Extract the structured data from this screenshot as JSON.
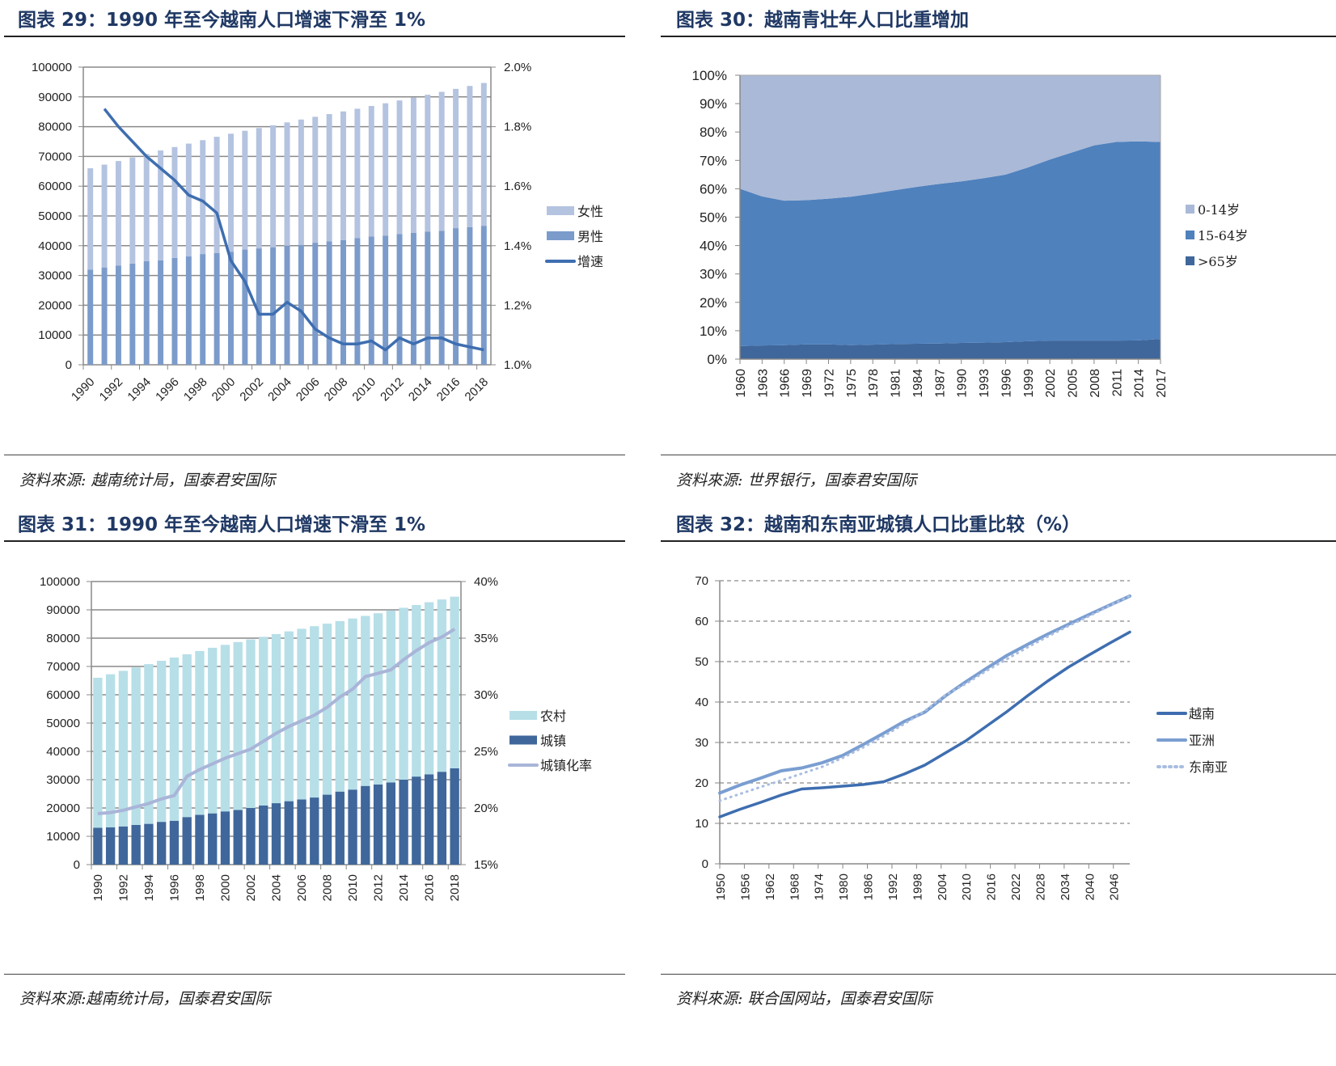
{
  "panels": [
    {
      "title": "图表 29：1990 年至今越南人口增速下滑至 1%",
      "source": "资料來源: 越南统计局，国泰君安国际"
    },
    {
      "title": "图表 30：越南青壮年人口比重增加",
      "source": "资料來源: 世界银行，国泰君安国际"
    },
    {
      "title": "图表 31：1990 年至今越南人口增速下滑至 1%",
      "source": "资料來源:越南统计局，国泰君安国际"
    },
    {
      "title": "图表 32：越南和东南亚城镇人口比重比较（%）",
      "source": "资料來源: 联合国网站，国泰君安国际"
    }
  ],
  "chart_data": [
    {
      "type": "bar",
      "stacked": true,
      "x": [
        1990,
        1991,
        1992,
        1993,
        1994,
        1995,
        1996,
        1997,
        1998,
        1999,
        2000,
        2001,
        2002,
        2003,
        2004,
        2005,
        2006,
        2007,
        2008,
        2009,
        2010,
        2011,
        2012,
        2013,
        2014,
        2015,
        2016,
        2017,
        2018
      ],
      "x_tick_labels": [
        "1990",
        "1992",
        "1994",
        "1996",
        "1998",
        "2000",
        "2002",
        "2004",
        "2006",
        "2008",
        "2010",
        "2012",
        "2014",
        "2016",
        "2018"
      ],
      "series": [
        {
          "name": "男性",
          "axis": "left",
          "color": "#7b9bcb",
          "values": [
            32000,
            32700,
            33300,
            34000,
            34800,
            35100,
            35900,
            36400,
            37200,
            37500,
            38000,
            38700,
            39100,
            39500,
            40000,
            40300,
            41000,
            41500,
            41900,
            42600,
            43100,
            43400,
            43900,
            44300,
            44700,
            45000,
            45900,
            46200,
            46700
          ]
        },
        {
          "name": "女性",
          "axis": "left",
          "color": "#b4c3e0",
          "values": [
            34016,
            34542,
            35150,
            35645,
            36025,
            36896,
            37257,
            37907,
            38256,
            39097,
            39631,
            39921,
            40438,
            40968,
            41438,
            42094,
            42314,
            42721,
            43219,
            43425,
            43847,
            44460,
            44909,
            45460,
            46029,
            46713,
            46795,
            47471,
            47966
          ]
        },
        {
          "name": "增速",
          "type": "line",
          "axis": "right",
          "color": "#3e6eb0",
          "x": [
            1991,
            1992,
            1993,
            1994,
            1995,
            1996,
            1997,
            1998,
            1999,
            2000,
            2001,
            2002,
            2003,
            2004,
            2005,
            2006,
            2007,
            2008,
            2009,
            2010,
            2011,
            2012,
            2013,
            2014,
            2015,
            2016,
            2017,
            2018
          ],
          "values": [
            1.86,
            1.8,
            1.75,
            1.7,
            1.66,
            1.62,
            1.57,
            1.55,
            1.51,
            1.35,
            1.28,
            1.17,
            1.17,
            1.21,
            1.18,
            1.12,
            1.09,
            1.07,
            1.07,
            1.08,
            1.05,
            1.09,
            1.07,
            1.09,
            1.09,
            1.07,
            1.06,
            1.05
          ]
        }
      ],
      "left_axis": {
        "min": 0,
        "max": 100000,
        "step": 10000,
        "ticks": [
          "0",
          "10000",
          "20000",
          "30000",
          "40000",
          "50000",
          "60000",
          "70000",
          "80000",
          "90000",
          "100000"
        ]
      },
      "right_axis": {
        "min": 1.0,
        "max": 2.0,
        "ticks": [
          "1.0%",
          "1.2%",
          "1.4%",
          "1.6%",
          "1.8%",
          "2.0%"
        ]
      },
      "legend": [
        "女性",
        "男性",
        "增速"
      ],
      "legend_position": "right",
      "grid": true
    },
    {
      "type": "area",
      "stacked": true,
      "x": [
        1960,
        1963,
        1966,
        1969,
        1972,
        1975,
        1978,
        1981,
        1984,
        1987,
        1990,
        1993,
        1996,
        1999,
        2002,
        2005,
        2008,
        2011,
        2014,
        2017
      ],
      "series": [
        {
          "name": ">65岁",
          "color": "#3f679b",
          "values": [
            4.6,
            4.8,
            4.9,
            5.2,
            5.2,
            4.9,
            5.1,
            5.3,
            5.4,
            5.5,
            5.7,
            5.8,
            6.0,
            6.3,
            6.5,
            6.5,
            6.5,
            6.5,
            6.6,
            7.1
          ]
        },
        {
          "name": "15-64岁",
          "color": "#4f81bd",
          "values": [
            55.4,
            52.5,
            50.9,
            50.8,
            51.3,
            52.3,
            53.2,
            54.2,
            55.3,
            56.2,
            56.9,
            57.9,
            59.0,
            61.2,
            63.8,
            66.3,
            68.8,
            70.0,
            70.1,
            69.4
          ]
        },
        {
          "name": "0-14岁",
          "color": "#aab9d7",
          "values": [
            40.0,
            42.7,
            44.2,
            44.0,
            43.5,
            42.8,
            41.7,
            40.5,
            39.3,
            38.3,
            37.4,
            36.3,
            35.0,
            32.5,
            29.7,
            27.2,
            24.7,
            23.5,
            23.3,
            23.5
          ]
        }
      ],
      "y_axis": {
        "min": 0,
        "max": 100,
        "ticks": [
          "0%",
          "10%",
          "20%",
          "30%",
          "40%",
          "50%",
          "60%",
          "70%",
          "80%",
          "90%",
          "100%"
        ]
      },
      "legend": [
        "0-14岁",
        "15-64岁",
        ">65岁"
      ],
      "legend_position": "right"
    },
    {
      "type": "bar",
      "stacked": true,
      "x": [
        1990,
        1991,
        1992,
        1993,
        1994,
        1995,
        1996,
        1997,
        1998,
        1999,
        2000,
        2001,
        2002,
        2003,
        2004,
        2005,
        2006,
        2007,
        2008,
        2009,
        2010,
        2011,
        2012,
        2013,
        2014,
        2015,
        2016,
        2017,
        2018
      ],
      "x_tick_labels": [
        "1990",
        "1992",
        "1994",
        "1996",
        "1998",
        "2000",
        "2002",
        "2004",
        "2006",
        "2008",
        "2010",
        "2012",
        "2014",
        "2016",
        "2018"
      ],
      "series": [
        {
          "name": "城镇",
          "axis": "left",
          "color": "#3f679b",
          "values": [
            13000,
            13200,
            13500,
            14000,
            14400,
            15100,
            15500,
            16800,
            17600,
            18100,
            18800,
            19300,
            20000,
            20900,
            21700,
            22400,
            23000,
            23700,
            24700,
            25800,
            26500,
            27800,
            28300,
            29000,
            30000,
            31100,
            31900,
            32800,
            34000
          ]
        },
        {
          "name": "农村",
          "axis": "left",
          "color": "#b7dfe8",
          "values": [
            53016,
            54042,
            54950,
            55645,
            56425,
            56896,
            57657,
            57507,
            57856,
            58497,
            58831,
            59321,
            59538,
            59568,
            59738,
            59994,
            60314,
            60521,
            60419,
            60225,
            60447,
            60060,
            60509,
            60760,
            60729,
            60613,
            60795,
            60871,
            60666
          ]
        },
        {
          "name": "城镇化率",
          "type": "line",
          "axis": "right",
          "color": "#a9b5d8",
          "values": [
            19.5,
            19.6,
            19.8,
            20.1,
            20.4,
            20.8,
            21.1,
            22.8,
            23.4,
            23.9,
            24.4,
            24.8,
            25.2,
            25.9,
            26.6,
            27.2,
            27.7,
            28.2,
            28.9,
            29.8,
            30.5,
            31.6,
            31.9,
            32.2,
            33.1,
            33.9,
            34.6,
            35.1,
            35.8
          ]
        }
      ],
      "left_axis": {
        "min": 0,
        "max": 100000,
        "ticks": [
          "0",
          "10000",
          "20000",
          "30000",
          "40000",
          "50000",
          "60000",
          "70000",
          "80000",
          "90000",
          "100000"
        ]
      },
      "right_axis": {
        "min": 15,
        "max": 40,
        "ticks": [
          "15%",
          "20%",
          "25%",
          "30%",
          "35%",
          "40%"
        ]
      },
      "legend": [
        "农村",
        "城镇",
        "城镇化率"
      ],
      "legend_position": "right",
      "grid": true
    },
    {
      "type": "line",
      "x": [
        1950,
        1955,
        1960,
        1965,
        1970,
        1975,
        1980,
        1985,
        1990,
        1995,
        2000,
        2005,
        2010,
        2015,
        2020,
        2025,
        2030,
        2035,
        2040,
        2045,
        2050
      ],
      "x_range": [
        1950,
        2050
      ],
      "x_tick_labels": [
        "1950",
        "1956",
        "1962",
        "1968",
        "1974",
        "1980",
        "1986",
        "1992",
        "1998",
        "2004",
        "2010",
        "2016",
        "2022",
        "2028",
        "2034",
        "2040",
        "2046"
      ],
      "series": [
        {
          "name": "越南",
          "color": "#3e6eb0",
          "style": "solid",
          "values": [
            11.6,
            13.5,
            15.2,
            17.0,
            18.5,
            18.8,
            19.2,
            19.6,
            20.3,
            22.2,
            24.4,
            27.4,
            30.4,
            34.0,
            37.6,
            41.5,
            45.2,
            48.6,
            51.6,
            54.5,
            57.3
          ]
        },
        {
          "name": "亚洲",
          "color": "#7a9ed1",
          "style": "solid",
          "values": [
            17.5,
            19.5,
            21.2,
            23.0,
            23.7,
            25.0,
            26.8,
            29.5,
            32.3,
            35.2,
            37.5,
            41.5,
            45.0,
            48.3,
            51.5,
            54.2,
            56.8,
            59.2,
            61.6,
            63.9,
            66.2
          ]
        },
        {
          "name": "东南亚",
          "color": "#a9bde0",
          "style": "dotted",
          "values": [
            15.6,
            17.3,
            19.0,
            20.6,
            22.3,
            24.0,
            26.2,
            28.8,
            31.6,
            34.6,
            37.8,
            41.7,
            44.5,
            47.7,
            50.6,
            53.5,
            56.2,
            58.8,
            61.2,
            63.8,
            66.2
          ]
        }
      ],
      "y_axis": {
        "min": 0,
        "max": 70,
        "ticks": [
          "0",
          "10",
          "20",
          "30",
          "40",
          "50",
          "60",
          "70"
        ]
      },
      "legend": [
        "越南",
        "亚洲",
        "东南亚"
      ],
      "legend_position": "right",
      "grid": "dashed"
    }
  ]
}
